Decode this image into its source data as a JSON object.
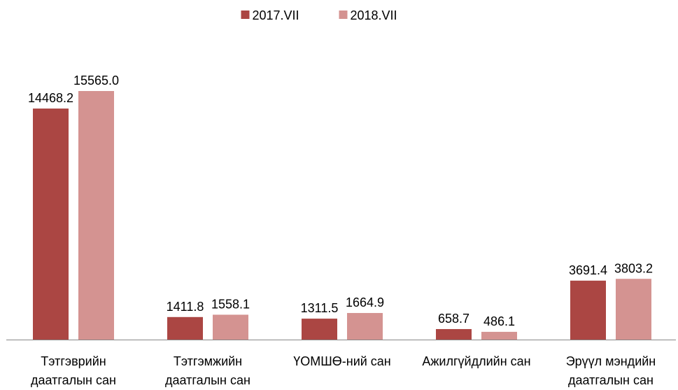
{
  "chart_data": {
    "type": "bar",
    "categories": [
      "Тэтгэврийн даатгалын сан",
      "Тэтгэмжийн даатгалын сан",
      "ҮОМШӨ-ний сан",
      "Ажилгүйдлийн сан",
      "Эрүүл мэндийн даатгалын сан"
    ],
    "series": [
      {
        "name": "2017.VII",
        "color": "#ab4643",
        "values": [
          14468.2,
          1411.8,
          1311.5,
          658.7,
          3691.4
        ],
        "value_labels": [
          "14468.2",
          "1411.8",
          "1311.5",
          "658.7",
          "3691.4"
        ]
      },
      {
        "name": "2018.VII",
        "color": "#d49391",
        "values": [
          15565.0,
          1558.1,
          1664.9,
          486.1,
          3803.2
        ],
        "value_labels": [
          "15565.0",
          "1558.1",
          "1664.9",
          "486.1",
          "3803.2"
        ]
      }
    ],
    "legend": "top"
  }
}
